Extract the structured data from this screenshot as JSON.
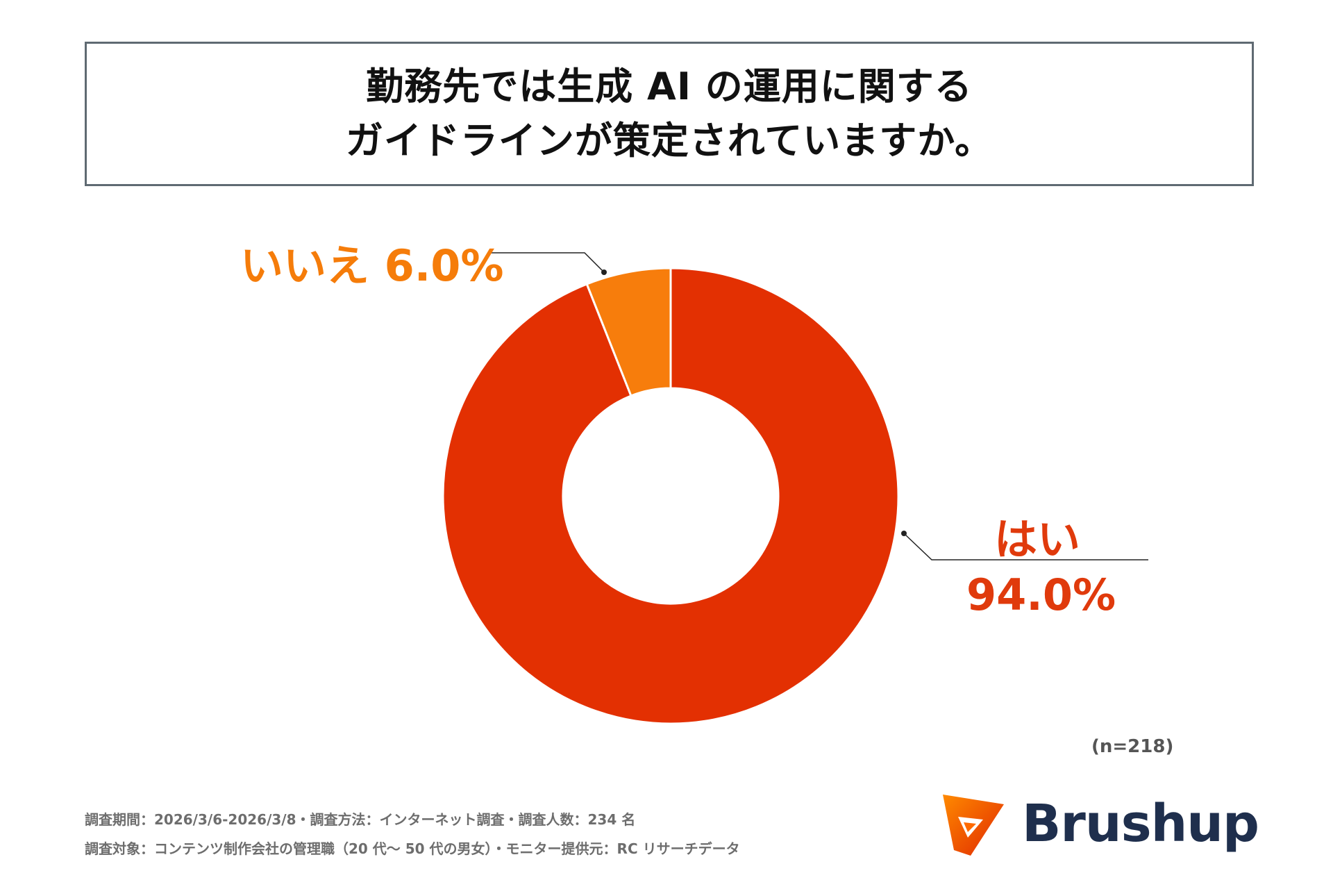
{
  "title": {
    "line1": "勤務先では生成 AI の運用に関する",
    "line2": "ガイドラインが策定されていますか。"
  },
  "chart_data": {
    "type": "pie",
    "style": "donut",
    "categories": [
      "はい",
      "いいえ"
    ],
    "values": [
      94.0,
      6.0
    ],
    "value_labels": [
      "94.0%",
      "6.0%"
    ],
    "colors": [
      "#e33002",
      "#f77d0c"
    ],
    "sample_size": "(n=218)"
  },
  "labels": {
    "no": "いいえ 6.0%",
    "yes_name": "はい",
    "yes_value": "94.0%"
  },
  "footer": {
    "line1": "調査期間：2026/3/6-2026/3/8・調査方法：インターネット調査・調査人数：234 名",
    "line2": "調査対象：コンテンツ制作会社の管理職（20 代～ 50 代の男女）・モニター提供元：RC リサーチデータ"
  },
  "brand": {
    "name": "Brushup",
    "logo_icon": "brushup-logo-icon",
    "colors": [
      "#ff6a00",
      "#e62e00",
      "#1f2f4d"
    ]
  }
}
